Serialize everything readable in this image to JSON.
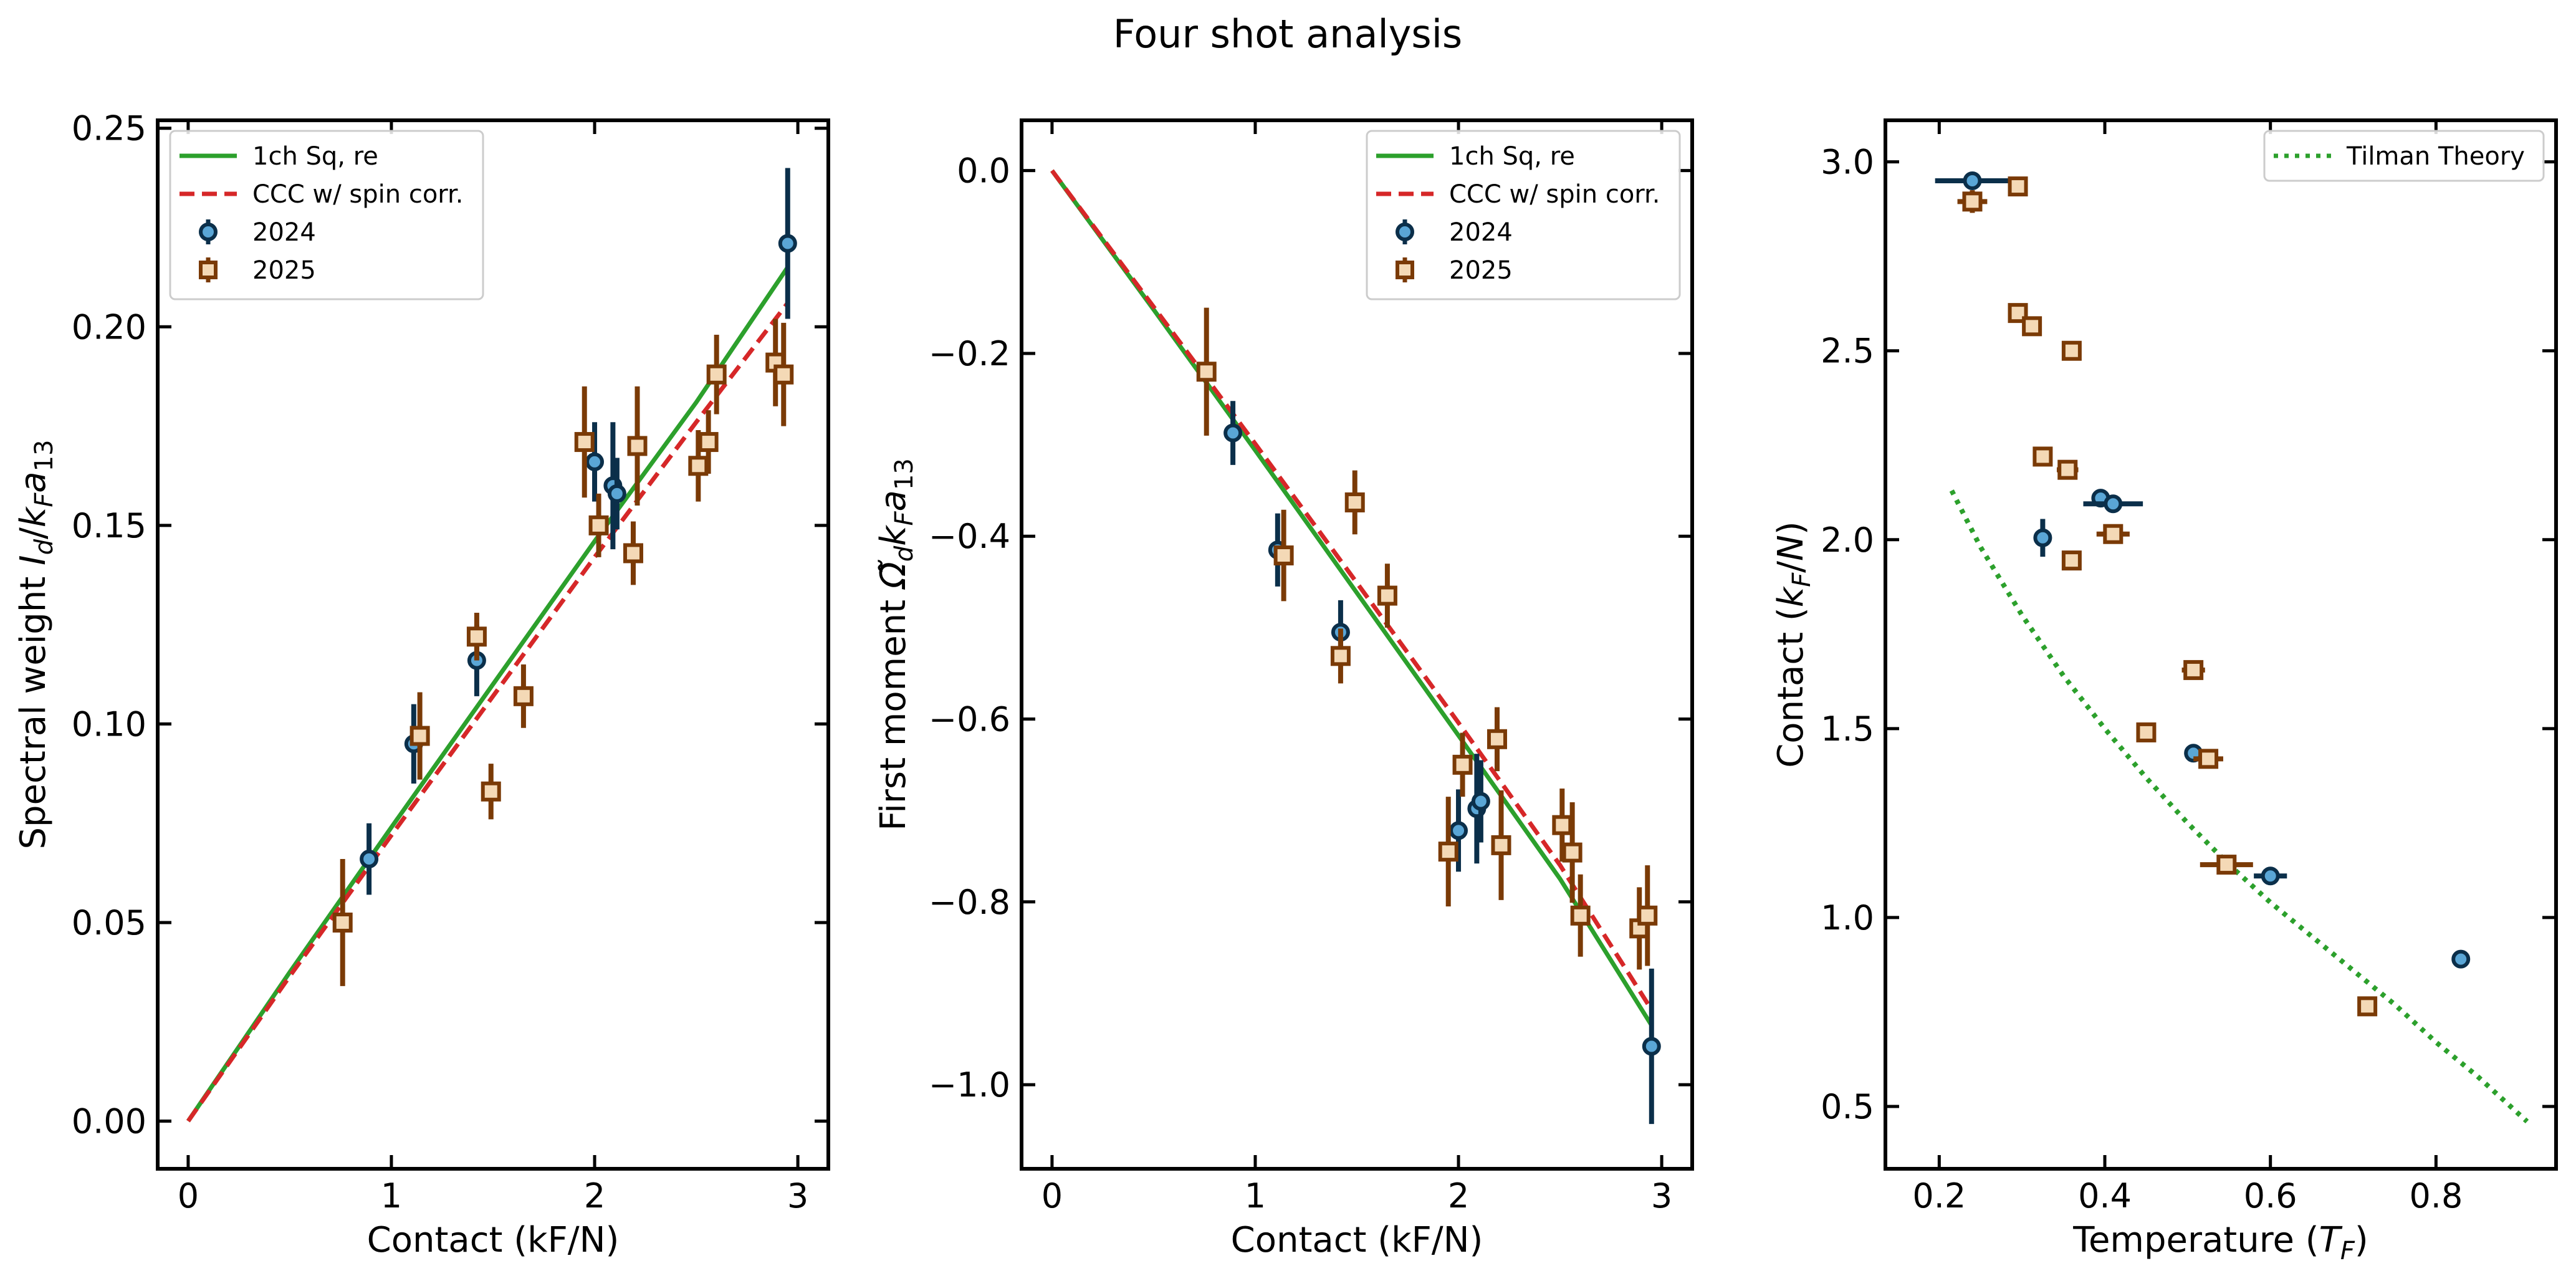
{
  "figure": {
    "title": "Four shot analysis"
  },
  "colors": {
    "sq": "#2ca02c",
    "ccc": "#d62728",
    "y2024_edge": "#0b2f4a",
    "y2024_fill": "#5aa6d6",
    "y2025_edge": "#7a3a06",
    "y2025_fill": "#f4d9b6",
    "theory": "#2ca02c"
  },
  "chart_data": [
    {
      "type": "scatter",
      "xlabel": "Contact (kF/N)",
      "ylabel": "Spectral weight I_d/k_F a_13",
      "xlim": [
        -0.15,
        3.15
      ],
      "ylim": [
        -0.012,
        0.252
      ],
      "xticks": [
        0,
        1,
        2,
        3
      ],
      "xtick_labels": [
        "0",
        "1",
        "2",
        "3"
      ],
      "yticks": [
        0,
        0.05,
        0.1,
        0.15,
        0.2,
        0.25
      ],
      "ytick_labels": [
        "0.00",
        "0.05",
        "0.10",
        "0.15",
        "0.20",
        "0.25"
      ],
      "legend": {
        "placement": "upper-left",
        "entries": [
          "1ch Sq, re",
          "CCC w/ spin corr.",
          "2024",
          "2025"
        ]
      },
      "lines": [
        {
          "name": "1ch Sq, re",
          "style": "solid",
          "color_key": "sq",
          "x": [
            0,
            0.5,
            1.0,
            1.5,
            2.0,
            2.5,
            2.95
          ],
          "y": [
            0,
            0.0375,
            0.074,
            0.11,
            0.146,
            0.181,
            0.215
          ]
        },
        {
          "name": "CCC w/ spin corr.",
          "style": "dashed",
          "color_key": "ccc",
          "x": [
            0,
            0.5,
            1.0,
            1.5,
            2.0,
            2.5,
            2.95
          ],
          "y": [
            0,
            0.0365,
            0.072,
            0.107,
            0.142,
            0.176,
            0.206
          ]
        }
      ],
      "series": [
        {
          "name": "2024",
          "marker": "circle",
          "x": [
            0.89,
            1.11,
            1.42,
            2.0,
            2.09,
            2.11,
            2.95
          ],
          "y": [
            0.066,
            0.095,
            0.116,
            0.166,
            0.16,
            0.158,
            0.221
          ],
          "yerr": [
            0.009,
            0.01,
            0.009,
            0.01,
            0.016,
            0.009,
            0.019
          ],
          "xerr": [
            0,
            0,
            0,
            0,
            0,
            0,
            0
          ]
        },
        {
          "name": "2025",
          "marker": "square",
          "x": [
            0.76,
            1.14,
            1.42,
            1.49,
            1.65,
            1.95,
            2.02,
            2.19,
            2.21,
            2.51,
            2.56,
            2.6,
            2.89,
            2.93
          ],
          "y": [
            0.05,
            0.097,
            0.122,
            0.083,
            0.107,
            0.171,
            0.15,
            0.143,
            0.17,
            0.165,
            0.171,
            0.188,
            0.191,
            0.188
          ],
          "yerr": [
            0.016,
            0.011,
            0.006,
            0.007,
            0.008,
            0.014,
            0.008,
            0.008,
            0.015,
            0.009,
            0.008,
            0.01,
            0.011,
            0.013
          ],
          "xerr": [
            0,
            0,
            0,
            0,
            0,
            0,
            0,
            0,
            0,
            0,
            0,
            0,
            0,
            0
          ]
        }
      ]
    },
    {
      "type": "scatter",
      "xlabel": "Contact (kF/N)",
      "ylabel": "First moment Ω̃_d k_F a_13",
      "xlim": [
        -0.15,
        3.15
      ],
      "ylim": [
        -1.092,
        0.055
      ],
      "xticks": [
        0,
        1,
        2,
        3
      ],
      "xtick_labels": [
        "0",
        "1",
        "2",
        "3"
      ],
      "yticks": [
        0,
        -0.2,
        -0.4,
        -0.6,
        -0.8,
        -1.0
      ],
      "ytick_labels": [
        "0.0",
        "−0.2",
        "−0.4",
        "−0.6",
        "−0.8",
        "−1.0"
      ],
      "legend": {
        "placement": "upper-right",
        "entries": [
          "1ch Sq, re",
          "CCC w/ spin corr.",
          "2024",
          "2025"
        ]
      },
      "lines": [
        {
          "name": "1ch Sq, re",
          "style": "solid",
          "color_key": "sq",
          "x": [
            0,
            0.5,
            1.0,
            1.5,
            2.0,
            2.5,
            2.95
          ],
          "y": [
            0,
            -0.152,
            -0.306,
            -0.462,
            -0.618,
            -0.775,
            -0.935
          ]
        },
        {
          "name": "CCC w/ spin corr.",
          "style": "dashed",
          "color_key": "ccc",
          "x": [
            0,
            0.5,
            1.0,
            1.5,
            2.0,
            2.5,
            2.95
          ],
          "y": [
            0,
            -0.149,
            -0.299,
            -0.451,
            -0.604,
            -0.76,
            -0.918
          ]
        }
      ],
      "series": [
        {
          "name": "2024",
          "marker": "circle",
          "x": [
            0.89,
            1.11,
            1.42,
            2.0,
            2.09,
            2.11,
            2.95
          ],
          "y": [
            -0.287,
            -0.415,
            -0.505,
            -0.722,
            -0.698,
            -0.69,
            -0.958
          ],
          "yerr": [
            0.035,
            0.04,
            0.035,
            0.045,
            0.06,
            0.045,
            0.085
          ],
          "xerr": [
            0,
            0,
            0,
            0,
            0,
            0,
            0
          ]
        },
        {
          "name": "2025",
          "marker": "square",
          "x": [
            0.76,
            1.14,
            1.42,
            1.49,
            1.65,
            1.95,
            2.02,
            2.19,
            2.21,
            2.51,
            2.56,
            2.6,
            2.89,
            2.93
          ],
          "y": [
            -0.22,
            -0.421,
            -0.531,
            -0.363,
            -0.465,
            -0.745,
            -0.65,
            -0.622,
            -0.738,
            -0.716,
            -0.746,
            -0.815,
            -0.829,
            -0.815
          ],
          "yerr": [
            0.07,
            0.05,
            0.03,
            0.035,
            0.035,
            0.06,
            0.035,
            0.035,
            0.06,
            0.04,
            0.055,
            0.045,
            0.045,
            0.055
          ],
          "xerr": [
            0,
            0,
            0,
            0,
            0,
            0,
            0,
            0,
            0,
            0,
            0,
            0,
            0,
            0
          ]
        }
      ]
    },
    {
      "type": "scatter",
      "xlabel": "Temperature (T_F)",
      "ylabel": "Contact (k_F/N)",
      "xlim": [
        0.135,
        0.945
      ],
      "ylim": [
        0.335,
        3.11
      ],
      "xticks": [
        0.2,
        0.4,
        0.6,
        0.8
      ],
      "xtick_labels": [
        "0.2",
        "0.4",
        "0.6",
        "0.8"
      ],
      "yticks": [
        0.5,
        1.0,
        1.5,
        2.0,
        2.5,
        3.0
      ],
      "ytick_labels": [
        "0.5",
        "1.0",
        "1.5",
        "2.0",
        "2.5",
        "3.0"
      ],
      "legend": {
        "placement": "upper-right",
        "entries": [
          "Tilman Theory"
        ]
      },
      "lines": [
        {
          "name": "Tilman Theory",
          "style": "dotted",
          "color_key": "theory",
          "x": [
            0.215,
            0.25,
            0.3,
            0.35,
            0.4,
            0.45,
            0.5,
            0.55,
            0.6,
            0.65,
            0.7,
            0.75,
            0.8,
            0.85,
            0.91
          ],
          "y": [
            2.13,
            1.98,
            1.8,
            1.64,
            1.5,
            1.37,
            1.25,
            1.14,
            1.04,
            0.95,
            0.86,
            0.77,
            0.67,
            0.58,
            0.46
          ]
        }
      ],
      "series": [
        {
          "name": "2024",
          "marker": "circle",
          "x": [
            0.24,
            0.325,
            0.395,
            0.41,
            0.507,
            0.6,
            0.83
          ],
          "y": [
            2.95,
            2.005,
            2.11,
            2.095,
            1.435,
            1.11,
            0.89
          ],
          "xerr": [
            0.045,
            0,
            0,
            0.036,
            0,
            0.02,
            0
          ],
          "yerr": [
            0,
            0.05,
            0,
            0,
            0,
            0,
            0
          ]
        },
        {
          "name": "2025",
          "marker": "square",
          "x": [
            0.24,
            0.295,
            0.295,
            0.312,
            0.325,
            0.355,
            0.36,
            0.36,
            0.41,
            0.45,
            0.507,
            0.525,
            0.547,
            0.717
          ],
          "y": [
            2.895,
            2.935,
            2.6,
            2.565,
            2.22,
            2.185,
            2.5,
            1.945,
            2.015,
            1.49,
            1.655,
            1.42,
            1.14,
            0.765
          ],
          "xerr": [
            0.018,
            0,
            0,
            0,
            0,
            0.013,
            0,
            0,
            0.02,
            0,
            0.014,
            0.018,
            0.032,
            0
          ],
          "yerr": [
            0.03,
            0,
            0,
            0,
            0,
            0,
            0,
            0,
            0,
            0,
            0,
            0,
            0,
            0
          ]
        }
      ]
    }
  ]
}
